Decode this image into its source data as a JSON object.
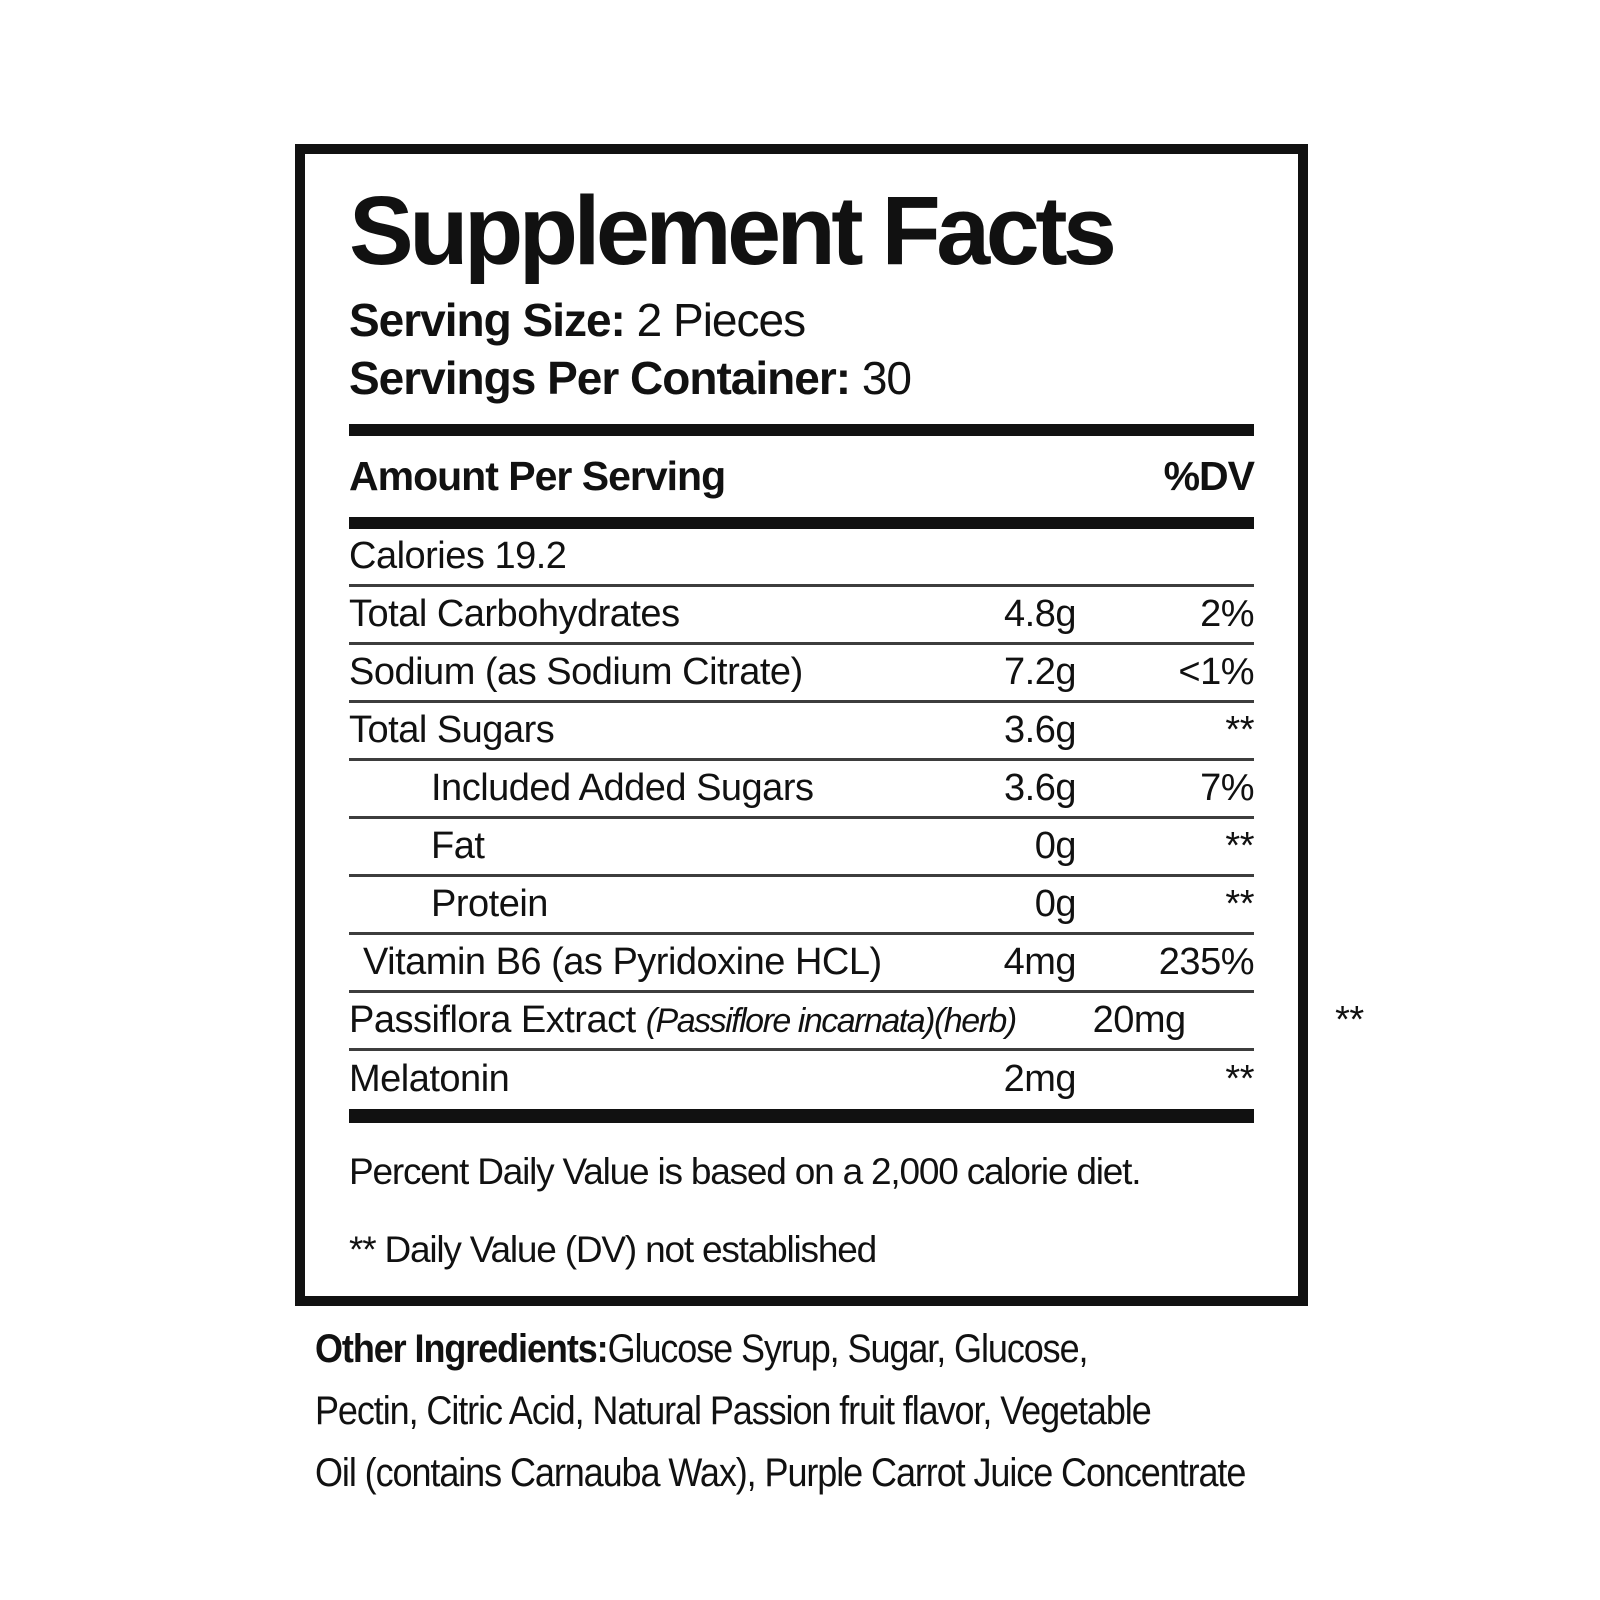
{
  "panel": {
    "title": "Supplement Facts",
    "serving": {
      "size_label": "Serving Size:",
      "size_value": "2 Pieces",
      "per_container_label": "Servings Per Container:",
      "per_container_value": "30"
    },
    "table": {
      "header": {
        "amount_col": "Amount Per Serving",
        "dv_col": "%DV"
      },
      "rows": [
        {
          "name": "Calories 19.2",
          "amount": "",
          "dv": ""
        },
        {
          "name": "Total Carbohydrates",
          "amount": "4.8g",
          "dv": "2%"
        },
        {
          "name": "Sodium (as Sodium Citrate)",
          "amount": "7.2g",
          "dv": "<1%"
        },
        {
          "name": "Total Sugars",
          "amount": "3.6g",
          "dv": "**"
        },
        {
          "name": "Included Added Sugars",
          "amount": "3.6g",
          "dv": "7%"
        },
        {
          "name": "Fat",
          "amount": "0g",
          "dv": "**"
        },
        {
          "name": "Protein",
          "amount": "0g",
          "dv": "**"
        },
        {
          "name": "Vitamin B6 (as Pyridoxine HCL)",
          "amount": "4mg",
          "dv": "235%"
        },
        {
          "name": "Passiflora Extract ",
          "name_italic": "(Passiflore incarnata)(herb)",
          "amount": "20mg",
          "dv": "**"
        },
        {
          "name": "Melatonin",
          "amount": "2mg",
          "dv": "**"
        }
      ]
    },
    "footnotes": {
      "daily_value": "Percent Daily Value is based on a 2,000 calorie diet.",
      "not_established": "** Daily Value (DV) not established"
    }
  },
  "other_ingredients": {
    "label": "Other Ingredients:",
    "line1_rest": "Glucose Syrup,  Sugar, Glucose,",
    "line2": "Pectin, Citric Acid, Natural Passion fruit flavor, Vegetable",
    "line3": "Oil (contains Carnauba Wax), Purple Carrot Juice Concentrate"
  },
  "colors": {
    "text": "#111111",
    "separator": "#3d3d3d",
    "background": "#ffffff"
  }
}
